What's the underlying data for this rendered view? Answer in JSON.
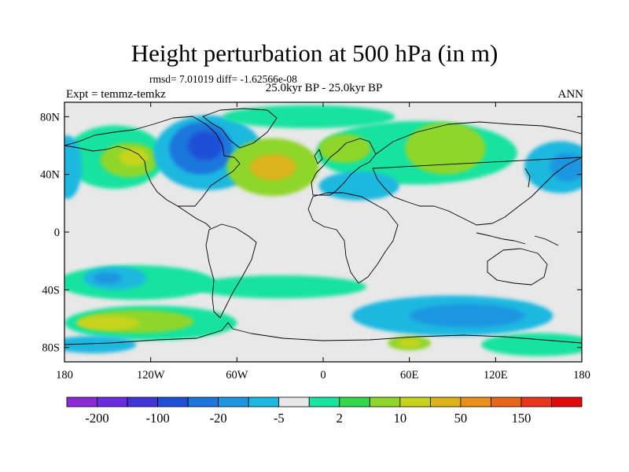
{
  "title": "Height perturbation at 500 hPa (in m)",
  "stats": "rmsd= 7.01019 diff= -1.62566e-08",
  "period": "25.0kyr BP - 25.0kyr BP",
  "left_label": "Expt = temmz-temkz",
  "right_label": "ANN",
  "map": {
    "projection": "cylindrical equidistant",
    "lon_range": [
      -180,
      180
    ],
    "lat_range": [
      -90,
      90
    ],
    "lat_ticks": [
      {
        "value": 80,
        "label": "80N"
      },
      {
        "value": 40,
        "label": "40N"
      },
      {
        "value": 0,
        "label": "0"
      },
      {
        "value": -40,
        "label": "40S"
      },
      {
        "value": -80,
        "label": "80S"
      }
    ],
    "lon_ticks": [
      {
        "value": -180,
        "label": "180"
      },
      {
        "value": -120,
        "label": "120W"
      },
      {
        "value": -60,
        "label": "60W"
      },
      {
        "value": 0,
        "label": "0"
      },
      {
        "value": 60,
        "label": "60E"
      },
      {
        "value": 120,
        "label": "120E"
      },
      {
        "value": 180,
        "label": "180"
      }
    ],
    "background_color": "#e8e8e8",
    "coastline_color": "#000000"
  },
  "colorbar": {
    "colors": [
      "#8c2ad6",
      "#6a2ce0",
      "#3f35d8",
      "#1f4fd6",
      "#1c76dc",
      "#1c96e0",
      "#1cb8e0",
      "#e8e8e8",
      "#19e3a0",
      "#33d84a",
      "#8fd62a",
      "#c8d41c",
      "#dcb41a",
      "#e8901a",
      "#e8661a",
      "#e8341a",
      "#e00a0a"
    ],
    "labels": [
      {
        "boundary": 1,
        "label": "-200"
      },
      {
        "boundary": 3,
        "label": "-100"
      },
      {
        "boundary": 5,
        "label": "-20"
      },
      {
        "boundary": 7,
        "label": "-5"
      },
      {
        "boundary": 9,
        "label": "2"
      },
      {
        "boundary": 11,
        "label": "10"
      },
      {
        "boundary": 13,
        "label": "50"
      },
      {
        "boundary": 15,
        "label": "150"
      }
    ]
  },
  "anomaly_regions": [
    {
      "name": "north-pacific-positive",
      "color": "#19e3a0",
      "lon": -145,
      "lat": 52,
      "rlon": 35,
      "rlat": 22
    },
    {
      "name": "north-pacific-core",
      "color": "#8fd62a",
      "lon": -135,
      "lat": 50,
      "rlon": 20,
      "rlat": 12
    },
    {
      "name": "north-pacific-max",
      "color": "#c8d41c",
      "lon": -132,
      "lat": 52,
      "rlon": 10,
      "rlat": 6
    },
    {
      "name": "dateline-negative",
      "color": "#1cb8e0",
      "lon": -178,
      "lat": 45,
      "rlon": 10,
      "rlat": 22
    },
    {
      "name": "north-america-negative",
      "color": "#1cb8e0",
      "lon": -80,
      "lat": 55,
      "rlon": 38,
      "rlat": 26
    },
    {
      "name": "north-america-trough",
      "color": "#1c76dc",
      "lon": -85,
      "lat": 58,
      "rlon": 22,
      "rlat": 18
    },
    {
      "name": "north-america-core",
      "color": "#1f4fd6",
      "lon": -82,
      "lat": 60,
      "rlon": 12,
      "rlat": 10
    },
    {
      "name": "north-atlantic-ridge",
      "color": "#8fd62a",
      "lon": -35,
      "lat": 45,
      "rlon": 32,
      "rlat": 20
    },
    {
      "name": "north-atlantic-core",
      "color": "#dcb41a",
      "lon": -35,
      "lat": 45,
      "rlon": 16,
      "rlat": 9
    },
    {
      "name": "arctic-positive",
      "color": "#19e3a0",
      "lon": -10,
      "lat": 80,
      "rlon": 60,
      "rlat": 8
    },
    {
      "name": "eurasia-positive",
      "color": "#19e3a0",
      "lon": 65,
      "lat": 55,
      "rlon": 70,
      "rlat": 22
    },
    {
      "name": "siberia-ridge",
      "color": "#8fd62a",
      "lon": 85,
      "lat": 58,
      "rlon": 28,
      "rlat": 18
    },
    {
      "name": "europe-ridge",
      "color": "#8fd62a",
      "lon": 15,
      "lat": 58,
      "rlon": 18,
      "rlat": 10
    },
    {
      "name": "mediterranean-negative",
      "color": "#1cb8e0",
      "lon": 25,
      "lat": 32,
      "rlon": 28,
      "rlat": 10
    },
    {
      "name": "west-pacific-negative",
      "color": "#1cb8e0",
      "lon": 165,
      "lat": 45,
      "rlon": 25,
      "rlat": 18
    },
    {
      "name": "west-pacific-core",
      "color": "#1c96e0",
      "lon": 170,
      "lat": 45,
      "rlon": 12,
      "rlat": 10
    },
    {
      "name": "south-pacific-band",
      "color": "#19e3a0",
      "lon": -130,
      "lat": -35,
      "rlon": 55,
      "rlat": 12
    },
    {
      "name": "south-pacific-low",
      "color": "#1cb8e0",
      "lon": -145,
      "lat": -32,
      "rlon": 22,
      "rlat": 8
    },
    {
      "name": "south-pacific-low-core",
      "color": "#1c96e0",
      "lon": -150,
      "lat": -32,
      "rlon": 10,
      "rlat": 4
    },
    {
      "name": "southern-ocean-positive",
      "color": "#19e3a0",
      "lon": -120,
      "lat": -63,
      "rlon": 60,
      "rlat": 12
    },
    {
      "name": "southern-ocean-ridge",
      "color": "#8fd62a",
      "lon": -130,
      "lat": -62,
      "rlon": 40,
      "rlat": 8
    },
    {
      "name": "southern-ocean-core",
      "color": "#c8d41c",
      "lon": -150,
      "lat": -63,
      "rlon": 22,
      "rlat": 5
    },
    {
      "name": "south-atlantic-band",
      "color": "#19e3a0",
      "lon": -30,
      "lat": -38,
      "rlon": 60,
      "rlat": 8
    },
    {
      "name": "south-indian-negative",
      "color": "#1cb8e0",
      "lon": 90,
      "lat": -58,
      "rlon": 70,
      "rlat": 14
    },
    {
      "name": "south-indian-core",
      "color": "#1c96e0",
      "lon": 100,
      "lat": -58,
      "rlon": 40,
      "rlat": 8
    },
    {
      "name": "antarctic-positive",
      "color": "#8fd62a",
      "lon": 60,
      "lat": -77,
      "rlon": 15,
      "rlat": 5
    },
    {
      "name": "antarctic-positive-core",
      "color": "#c8d41c",
      "lon": 60,
      "lat": -77,
      "rlon": 8,
      "rlat": 3
    },
    {
      "name": "east-antarctic-band",
      "color": "#19e3a0",
      "lon": 150,
      "lat": -78,
      "rlon": 40,
      "rlat": 8
    },
    {
      "name": "west-antarctic-negative",
      "color": "#1cb8e0",
      "lon": -160,
      "lat": -78,
      "rlon": 30,
      "rlat": 6
    }
  ]
}
